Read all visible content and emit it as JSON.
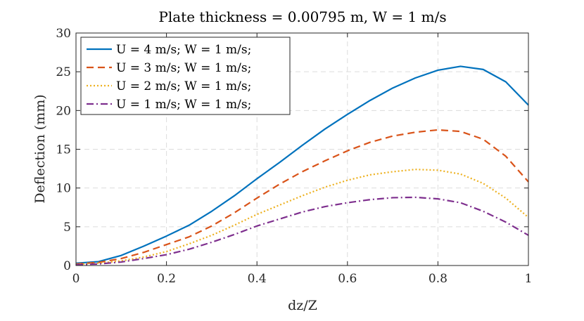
{
  "chart_data": {
    "type": "line",
    "title": "Plate thickness = 0.00795 m, W = 1 m/s",
    "xlabel": "dz/Z",
    "ylabel": "Deflection (mm)",
    "xlim": [
      0,
      1
    ],
    "ylim": [
      0,
      30
    ],
    "xticks": [
      0,
      0.2,
      0.4,
      0.6,
      0.8,
      1
    ],
    "xtick_labels": [
      "0",
      "0.2",
      "0.4",
      "0.6",
      "0.8",
      "1"
    ],
    "yticks": [
      0,
      5,
      10,
      15,
      20,
      25,
      30
    ],
    "ytick_labels": [
      "0",
      "5",
      "10",
      "15",
      "20",
      "25",
      "30"
    ],
    "grid": true,
    "legend_position": "top-left",
    "x": [
      0,
      0.05,
      0.1,
      0.15,
      0.2,
      0.25,
      0.3,
      0.35,
      0.4,
      0.45,
      0.5,
      0.55,
      0.6,
      0.65,
      0.7,
      0.75,
      0.8,
      0.85,
      0.9,
      0.95,
      1
    ],
    "series": [
      {
        "name": "U = 4 m/s; W = 1 m/s;",
        "color": "#0072BD",
        "dash": "solid",
        "values": [
          0.3,
          0.5,
          1.3,
          2.5,
          3.8,
          5.2,
          7.0,
          9.0,
          11.2,
          13.3,
          15.5,
          17.6,
          19.5,
          21.3,
          22.9,
          24.2,
          25.2,
          25.7,
          25.3,
          23.7,
          20.7
        ]
      },
      {
        "name": "U = 3 m/s; W = 1 m/s;",
        "color": "#D95319",
        "dash": "dashed",
        "values": [
          0.2,
          0.4,
          0.9,
          1.7,
          2.7,
          3.7,
          5.1,
          6.8,
          8.7,
          10.5,
          12.1,
          13.5,
          14.8,
          15.9,
          16.7,
          17.2,
          17.5,
          17.3,
          16.3,
          14.1,
          10.8
        ]
      },
      {
        "name": "U = 2 m/s; W = 1 m/s;",
        "color": "#EDB120",
        "dash": "dotted",
        "values": [
          0.15,
          0.3,
          0.6,
          1.1,
          1.8,
          2.8,
          3.9,
          5.2,
          6.6,
          7.8,
          9.0,
          10.1,
          11.0,
          11.7,
          12.1,
          12.4,
          12.3,
          11.8,
          10.6,
          8.7,
          6.2
        ]
      },
      {
        "name": "U = 1 m/s; W = 1 m/s;",
        "color": "#7E2F8E",
        "dash": "dashdot",
        "values": [
          0.1,
          0.2,
          0.45,
          0.9,
          1.4,
          2.1,
          3.0,
          4.0,
          5.1,
          6.0,
          6.9,
          7.6,
          8.1,
          8.5,
          8.75,
          8.8,
          8.6,
          8.1,
          7.0,
          5.6,
          3.9
        ]
      }
    ]
  }
}
